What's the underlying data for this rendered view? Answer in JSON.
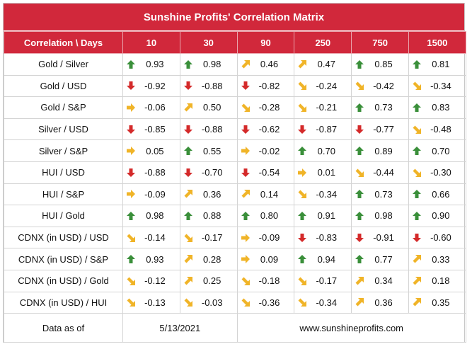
{
  "title": "Sunshine Profits' Correlation Matrix",
  "header": {
    "corner": "Correlation \\ Days",
    "days": [
      "10",
      "30",
      "90",
      "250",
      "750",
      "1500"
    ]
  },
  "colors": {
    "header_bg": "#d1283b",
    "arrow_up": "#3a8f3a",
    "arrow_down": "#d42a2a",
    "arrow_diagonal": "#f0b428",
    "arrow_right": "#f0b428"
  },
  "rows": [
    {
      "label": "Gold / Silver",
      "cells": [
        {
          "dir": "up",
          "value": "0.93"
        },
        {
          "dir": "up",
          "value": "0.98"
        },
        {
          "dir": "up-right",
          "value": "0.46"
        },
        {
          "dir": "up-right",
          "value": "0.47"
        },
        {
          "dir": "up",
          "value": "0.85"
        },
        {
          "dir": "up",
          "value": "0.81"
        }
      ]
    },
    {
      "label": "Gold / USD",
      "cells": [
        {
          "dir": "down",
          "value": "-0.92"
        },
        {
          "dir": "down",
          "value": "-0.88"
        },
        {
          "dir": "down",
          "value": "-0.82"
        },
        {
          "dir": "down-right",
          "value": "-0.24"
        },
        {
          "dir": "down-right",
          "value": "-0.42"
        },
        {
          "dir": "down-right",
          "value": "-0.34"
        }
      ]
    },
    {
      "label": "Gold / S&P",
      "cells": [
        {
          "dir": "right",
          "value": "-0.06"
        },
        {
          "dir": "up-right",
          "value": "0.50"
        },
        {
          "dir": "down-right",
          "value": "-0.28"
        },
        {
          "dir": "down-right",
          "value": "-0.21"
        },
        {
          "dir": "up",
          "value": "0.73"
        },
        {
          "dir": "up",
          "value": "0.83"
        }
      ]
    },
    {
      "label": "Silver / USD",
      "cells": [
        {
          "dir": "down",
          "value": "-0.85"
        },
        {
          "dir": "down",
          "value": "-0.88"
        },
        {
          "dir": "down",
          "value": "-0.62"
        },
        {
          "dir": "down",
          "value": "-0.87"
        },
        {
          "dir": "down",
          "value": "-0.77"
        },
        {
          "dir": "down-right",
          "value": "-0.48"
        }
      ]
    },
    {
      "label": "Silver / S&P",
      "cells": [
        {
          "dir": "right",
          "value": "0.05"
        },
        {
          "dir": "up",
          "value": "0.55"
        },
        {
          "dir": "right",
          "value": "-0.02"
        },
        {
          "dir": "up",
          "value": "0.70"
        },
        {
          "dir": "up",
          "value": "0.89"
        },
        {
          "dir": "up",
          "value": "0.70"
        }
      ]
    },
    {
      "label": "HUI / USD",
      "cells": [
        {
          "dir": "down",
          "value": "-0.88"
        },
        {
          "dir": "down",
          "value": "-0.70"
        },
        {
          "dir": "down",
          "value": "-0.54"
        },
        {
          "dir": "right",
          "value": "0.01"
        },
        {
          "dir": "down-right",
          "value": "-0.44"
        },
        {
          "dir": "down-right",
          "value": "-0.30"
        }
      ]
    },
    {
      "label": "HUI / S&P",
      "cells": [
        {
          "dir": "right",
          "value": "-0.09"
        },
        {
          "dir": "up-right",
          "value": "0.36"
        },
        {
          "dir": "up-right",
          "value": "0.14"
        },
        {
          "dir": "down-right",
          "value": "-0.34"
        },
        {
          "dir": "up",
          "value": "0.73"
        },
        {
          "dir": "up",
          "value": "0.66"
        }
      ]
    },
    {
      "label": "HUI / Gold",
      "cells": [
        {
          "dir": "up",
          "value": "0.98"
        },
        {
          "dir": "up",
          "value": "0.88"
        },
        {
          "dir": "up",
          "value": "0.80"
        },
        {
          "dir": "up",
          "value": "0.91"
        },
        {
          "dir": "up",
          "value": "0.98"
        },
        {
          "dir": "up",
          "value": "0.90"
        }
      ]
    },
    {
      "label": "CDNX (in USD) / USD",
      "cells": [
        {
          "dir": "down-right",
          "value": "-0.14"
        },
        {
          "dir": "down-right",
          "value": "-0.17"
        },
        {
          "dir": "right",
          "value": "-0.09"
        },
        {
          "dir": "down",
          "value": "-0.83"
        },
        {
          "dir": "down",
          "value": "-0.91"
        },
        {
          "dir": "down",
          "value": "-0.60"
        }
      ]
    },
    {
      "label": "CDNX (in USD) / S&P",
      "cells": [
        {
          "dir": "up",
          "value": "0.93"
        },
        {
          "dir": "up-right",
          "value": "0.28"
        },
        {
          "dir": "right",
          "value": "0.09"
        },
        {
          "dir": "up",
          "value": "0.94"
        },
        {
          "dir": "up",
          "value": "0.77"
        },
        {
          "dir": "up-right",
          "value": "0.33"
        }
      ]
    },
    {
      "label": "CDNX (in USD) / Gold",
      "cells": [
        {
          "dir": "down-right",
          "value": "-0.12"
        },
        {
          "dir": "up-right",
          "value": "0.25"
        },
        {
          "dir": "down-right",
          "value": "-0.18"
        },
        {
          "dir": "down-right",
          "value": "-0.17"
        },
        {
          "dir": "up-right",
          "value": "0.34"
        },
        {
          "dir": "up-right",
          "value": "0.18"
        }
      ]
    },
    {
      "label": "CDNX (in USD) / HUI",
      "cells": [
        {
          "dir": "down-right",
          "value": "-0.13"
        },
        {
          "dir": "down-right",
          "value": "-0.03"
        },
        {
          "dir": "down-right",
          "value": "-0.36"
        },
        {
          "dir": "down-right",
          "value": "-0.34"
        },
        {
          "dir": "up-right",
          "value": "0.36"
        },
        {
          "dir": "up-right",
          "value": "0.35"
        }
      ]
    }
  ],
  "footer": {
    "label": "Data as of",
    "date": "5/13/2021",
    "website": "www.sunshineprofits.com"
  }
}
